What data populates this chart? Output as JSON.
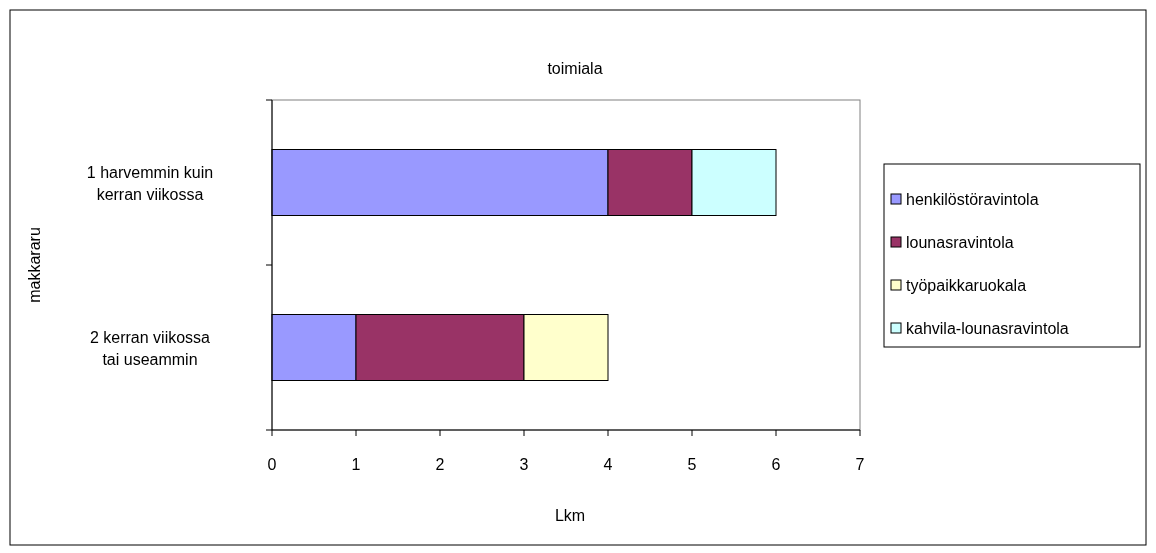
{
  "chart_data": {
    "type": "bar",
    "orientation": "horizontal",
    "stacked": true,
    "title": "toimiala",
    "xlabel": "Lkm",
    "ylabel": "makkararu",
    "categories": [
      "1 harvemmin kuin kerran viikossa",
      "2 kerran viikossa tai useammin"
    ],
    "series": [
      {
        "name": "henkilöstöravintola",
        "color": "#9999ff",
        "values": [
          4,
          1
        ]
      },
      {
        "name": "lounasravintola",
        "color": "#993366",
        "values": [
          1,
          2
        ]
      },
      {
        "name": "työpaikkaruokala",
        "color": "#ffffcc",
        "values": [
          0,
          1
        ]
      },
      {
        "name": "kahvila-lounasravintola",
        "color": "#ccffff",
        "values": [
          1,
          0
        ]
      }
    ],
    "xlim": [
      0,
      7
    ],
    "xticks": [
      0,
      1,
      2,
      3,
      4,
      5,
      6,
      7
    ],
    "grid": false,
    "legend": "right"
  }
}
